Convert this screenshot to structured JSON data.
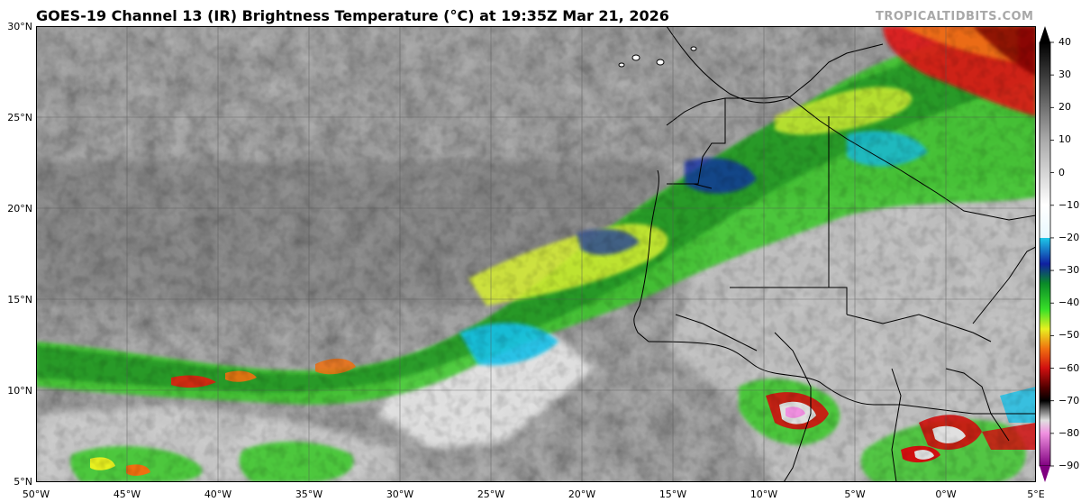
{
  "title": "GOES-19 Channel 13 (IR) Brightness Temperature (°C) at 19:35Z Mar 21, 2026",
  "credit": "TROPICALTIDBITS.COM",
  "lat_labels": [
    "30°N",
    "25°N",
    "20°N",
    "15°N",
    "10°N",
    "5°N"
  ],
  "lon_labels": [
    "50°W",
    "45°W",
    "40°W",
    "35°W",
    "30°W",
    "25°W",
    "20°W",
    "15°W",
    "10°W",
    "5°W",
    "0°W",
    "5°E"
  ],
  "colorbar": {
    "ticks": [
      "40",
      "30",
      "20",
      "10",
      "0",
      "−10",
      "−20",
      "−30",
      "−40",
      "−50",
      "−60",
      "−70",
      "−80",
      "−90"
    ],
    "stops": [
      {
        "t": 40,
        "color": "#000000"
      },
      {
        "t": 25,
        "color": "#555555"
      },
      {
        "t": 10,
        "color": "#aaaaaa"
      },
      {
        "t": -10,
        "color": "#ffffff"
      },
      {
        "t": -20,
        "color": "#e8f8ff"
      },
      {
        "t": -20,
        "color": "#1ec8e8"
      },
      {
        "t": -28,
        "color": "#1020a0"
      },
      {
        "t": -34,
        "color": "#0a8a28"
      },
      {
        "t": -42,
        "color": "#38e028"
      },
      {
        "t": -48,
        "color": "#e8f020"
      },
      {
        "t": -54,
        "color": "#f07010"
      },
      {
        "t": -60,
        "color": "#d01010"
      },
      {
        "t": -66,
        "color": "#500000"
      },
      {
        "t": -70,
        "color": "#000000"
      },
      {
        "t": -76,
        "color": "#e0e0e0"
      },
      {
        "t": -80,
        "color": "#f090e0"
      },
      {
        "t": -90,
        "color": "#800080"
      }
    ]
  }
}
